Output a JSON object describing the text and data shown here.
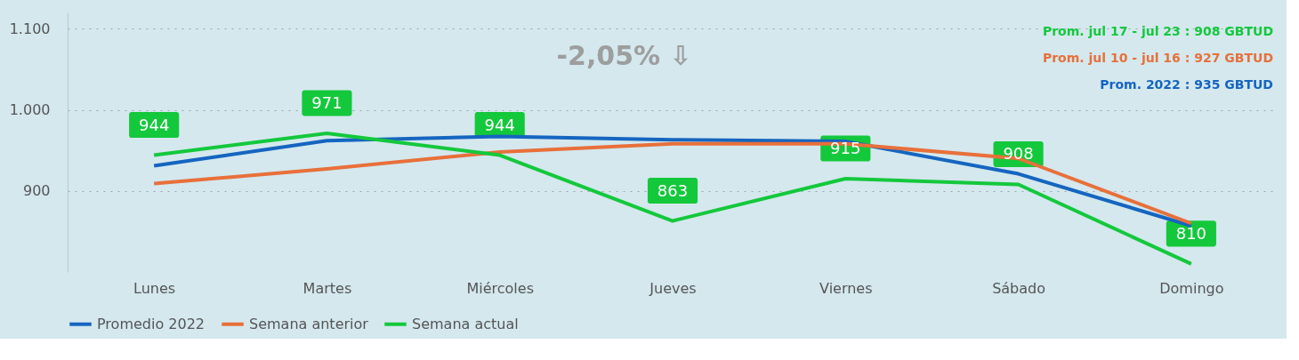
{
  "chart_data": {
    "type": "line",
    "categories": [
      "Lunes",
      "Martes",
      "Miércoles",
      "Jueves",
      "Viernes",
      "Sábado",
      "Domingo"
    ],
    "series": [
      {
        "name": "Promedio 2022",
        "color": "#1565c0",
        "values": [
          931,
          962,
          967,
          963,
          961,
          921,
          857
        ]
      },
      {
        "name": "Semana anterior",
        "color": "#e8703a",
        "values": [
          909,
          927,
          948,
          958,
          958,
          940,
          860
        ]
      },
      {
        "name": "Semana actual",
        "color": "#14c83c",
        "values": [
          944,
          971,
          944,
          863,
          915,
          908,
          810
        ],
        "value_labels": [
          "944",
          "971",
          "944",
          "863",
          "915",
          "908",
          "810"
        ]
      }
    ],
    "ylim": [
      800,
      1120
    ],
    "yticks": [
      {
        "value": 900,
        "label": "900"
      },
      {
        "value": 1000,
        "label": "1.000"
      },
      {
        "value": 1100,
        "label": "1.100"
      }
    ],
    "grid": "y",
    "legend": "bottom",
    "annotations": [
      "-2,05% ⇩",
      "Prom. jul 17 - jul 23 : 908 GBTUD",
      "Prom. jul 10 - jul 16 : 927 GBTUD",
      "Prom. 2022 : 935 GBTUD"
    ]
  }
}
